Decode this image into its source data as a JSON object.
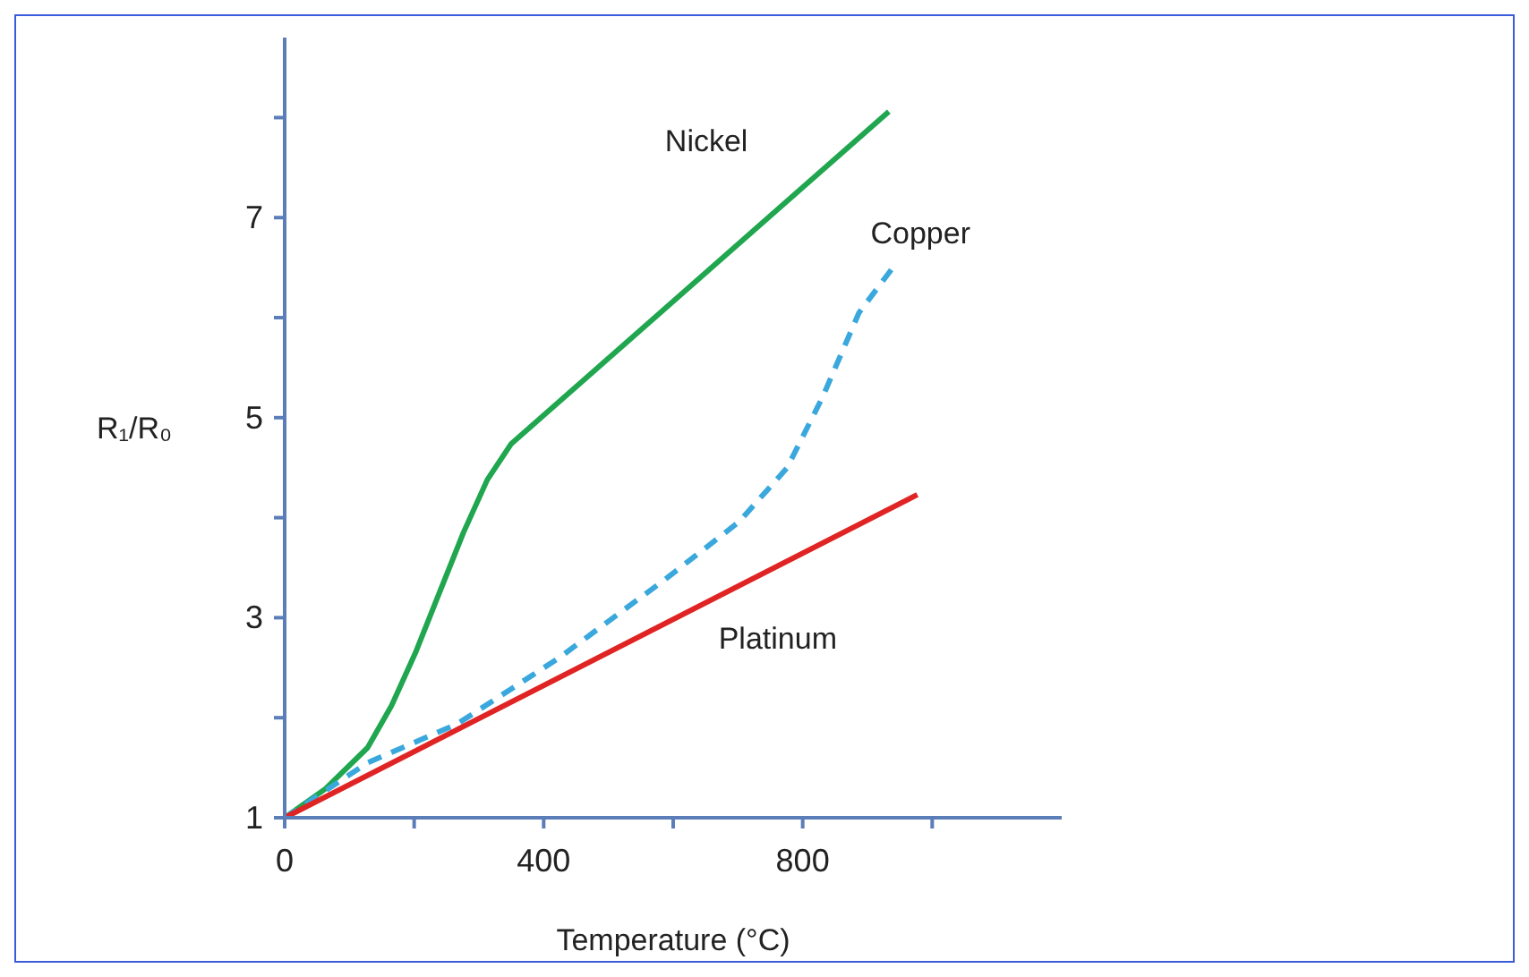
{
  "chart_data": {
    "type": "line",
    "xlabel": "Temperature (°C)",
    "ylabel": "R₁/R₀",
    "xlim": [
      0,
      1200
    ],
    "ylim": [
      1,
      8.8
    ],
    "xticks": [
      0,
      {
        "value": 200,
        "label": null
      },
      400,
      {
        "value": 600,
        "label": null
      },
      800,
      {
        "value": 1000,
        "label": null
      }
    ],
    "yticks": [
      1,
      {
        "value": 2,
        "label": null
      },
      3,
      {
        "value": 4,
        "label": null
      },
      5,
      {
        "value": 6,
        "label": null
      },
      7,
      {
        "value": 8,
        "label": null
      }
    ],
    "grid": false,
    "legend": false,
    "marker": "none",
    "series": [
      {
        "name": "Nickel",
        "color": "#1fa64f",
        "line_style": "solid",
        "x": [
          0,
          63,
          128,
          165,
          202,
          239,
          276,
          313,
          350,
          933
        ],
        "values": [
          1,
          1.29,
          1.7,
          2.12,
          2.65,
          3.25,
          3.85,
          4.38,
          4.74,
          8.06
        ]
      },
      {
        "name": "Copper",
        "color": "#3aa8dc",
        "line_style": "dashed",
        "x": [
          0,
          128,
          267,
          424,
          591,
          702,
          776,
          831,
          887,
          938
        ],
        "values": [
          1,
          1.55,
          1.94,
          2.6,
          3.4,
          3.96,
          4.5,
          5.21,
          6.05,
          6.49
        ]
      },
      {
        "name": "Platinum",
        "color": "#e02424",
        "line_style": "solid",
        "x": [
          0,
          977
        ],
        "values": [
          1,
          4.23
        ]
      }
    ]
  }
}
